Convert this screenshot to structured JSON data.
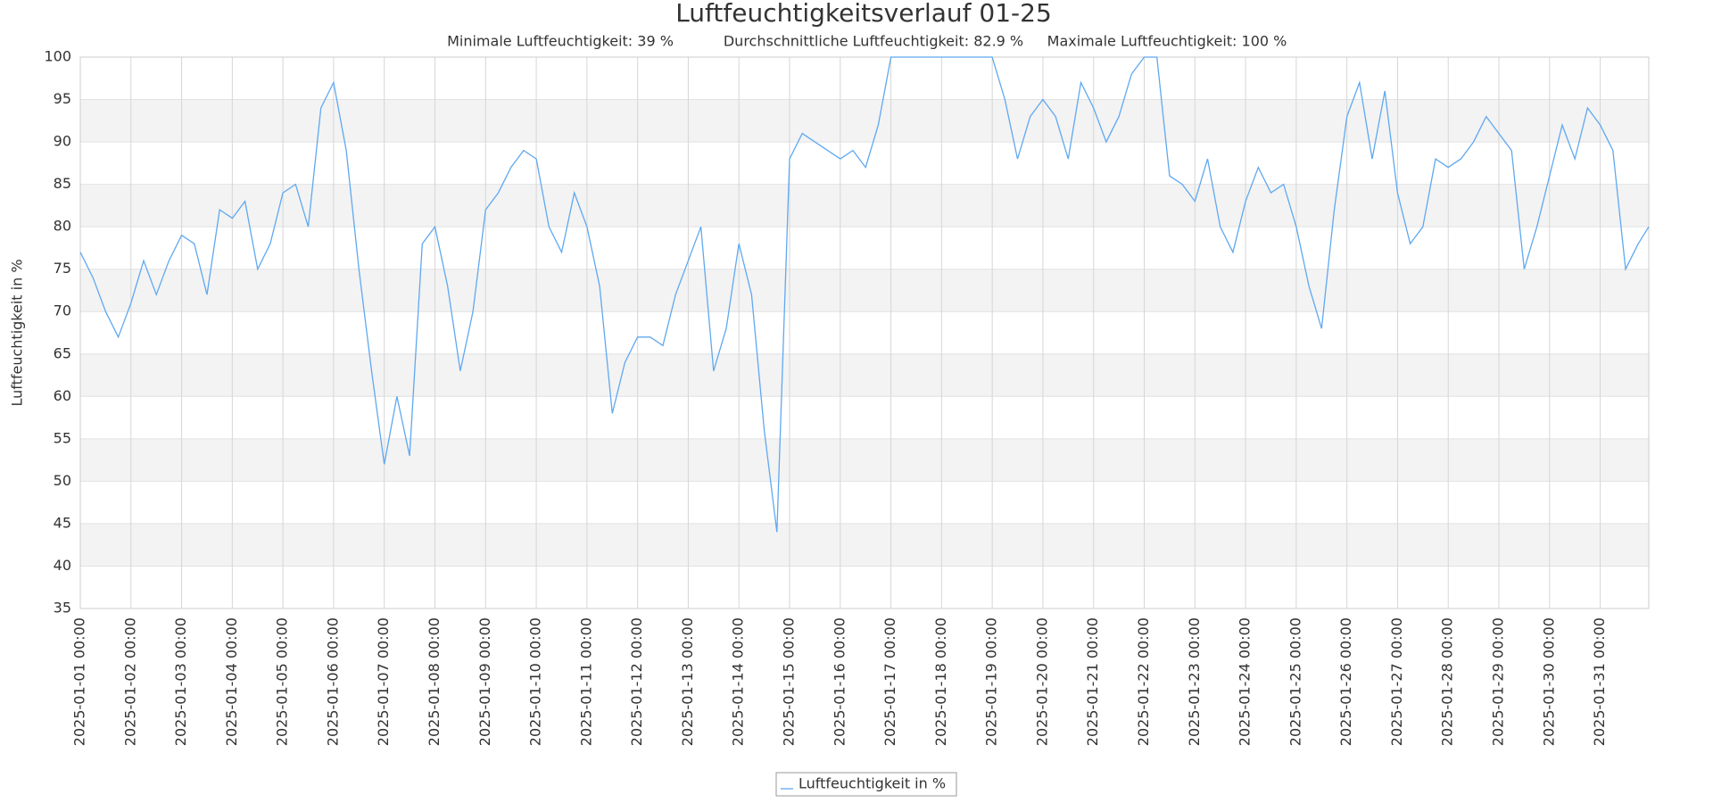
{
  "chart_data": {
    "type": "line",
    "title": "Luftfeuchtigkeitsverlauf 01-25",
    "stats": [
      "Minimale Luftfeuchtigkeit: 39 %",
      "Durchschnittliche Luftfeuchtigkeit: 82.9 %",
      "Maximale Luftfeuchtigkeit: 100 %"
    ],
    "y_label": "Luftfeuchtigkeit in %",
    "ylim": [
      35,
      100
    ],
    "yticks": [
      35,
      40,
      45,
      50,
      55,
      60,
      65,
      70,
      75,
      80,
      85,
      90,
      95,
      100
    ],
    "xlim": [
      "2025-01-01 00:00",
      "2025-01-31 23:00"
    ],
    "xticks": [
      "2025-01-01 00:00",
      "2025-01-02 00:00",
      "2025-01-03 00:00",
      "2025-01-04 00:00",
      "2025-01-05 00:00",
      "2025-01-06 00:00",
      "2025-01-07 00:00",
      "2025-01-08 00:00",
      "2025-01-09 00:00",
      "2025-01-10 00:00",
      "2025-01-11 00:00",
      "2025-01-12 00:00",
      "2025-01-13 00:00",
      "2025-01-14 00:00",
      "2025-01-15 00:00",
      "2025-01-16 00:00",
      "2025-01-17 00:00",
      "2025-01-18 00:00",
      "2025-01-19 00:00",
      "2025-01-20 00:00",
      "2025-01-21 00:00",
      "2025-01-22 00:00",
      "2025-01-23 00:00",
      "2025-01-24 00:00",
      "2025-01-25 00:00",
      "2025-01-26 00:00",
      "2025-01-27 00:00",
      "2025-01-28 00:00",
      "2025-01-29 00:00",
      "2025-01-30 00:00",
      "2025-01-31 00:00"
    ],
    "grid": true,
    "x": [
      "2025-01-01 00:00",
      "2025-01-01 06:00",
      "2025-01-01 12:00",
      "2025-01-01 18:00",
      "2025-01-02 00:00",
      "2025-01-02 06:00",
      "2025-01-02 12:00",
      "2025-01-02 18:00",
      "2025-01-03 00:00",
      "2025-01-03 06:00",
      "2025-01-03 12:00",
      "2025-01-03 18:00",
      "2025-01-04 00:00",
      "2025-01-04 06:00",
      "2025-01-04 12:00",
      "2025-01-04 18:00",
      "2025-01-05 00:00",
      "2025-01-05 06:00",
      "2025-01-05 12:00",
      "2025-01-05 18:00",
      "2025-01-06 00:00",
      "2025-01-06 06:00",
      "2025-01-06 12:00",
      "2025-01-06 18:00",
      "2025-01-07 00:00",
      "2025-01-07 06:00",
      "2025-01-07 12:00",
      "2025-01-07 18:00",
      "2025-01-08 00:00",
      "2025-01-08 06:00",
      "2025-01-08 12:00",
      "2025-01-08 18:00",
      "2025-01-09 00:00",
      "2025-01-09 06:00",
      "2025-01-09 12:00",
      "2025-01-09 18:00",
      "2025-01-10 00:00",
      "2025-01-10 06:00",
      "2025-01-10 12:00",
      "2025-01-10 18:00",
      "2025-01-11 00:00",
      "2025-01-11 06:00",
      "2025-01-11 12:00",
      "2025-01-11 18:00",
      "2025-01-12 00:00",
      "2025-01-12 06:00",
      "2025-01-12 12:00",
      "2025-01-12 18:00",
      "2025-01-13 00:00",
      "2025-01-13 06:00",
      "2025-01-13 12:00",
      "2025-01-13 18:00",
      "2025-01-14 00:00",
      "2025-01-14 06:00",
      "2025-01-14 12:00",
      "2025-01-14 18:00",
      "2025-01-15 00:00",
      "2025-01-15 06:00",
      "2025-01-15 12:00",
      "2025-01-15 18:00",
      "2025-01-16 00:00",
      "2025-01-16 06:00",
      "2025-01-16 12:00",
      "2025-01-16 18:00",
      "2025-01-17 00:00",
      "2025-01-17 06:00",
      "2025-01-17 12:00",
      "2025-01-17 18:00",
      "2025-01-18 00:00",
      "2025-01-18 06:00",
      "2025-01-18 12:00",
      "2025-01-18 18:00",
      "2025-01-19 00:00",
      "2025-01-19 06:00",
      "2025-01-19 12:00",
      "2025-01-19 18:00",
      "2025-01-20 00:00",
      "2025-01-20 06:00",
      "2025-01-20 12:00",
      "2025-01-20 18:00",
      "2025-01-21 00:00",
      "2025-01-21 06:00",
      "2025-01-21 12:00",
      "2025-01-21 18:00",
      "2025-01-22 00:00",
      "2025-01-22 06:00",
      "2025-01-22 12:00",
      "2025-01-22 18:00",
      "2025-01-23 00:00",
      "2025-01-23 06:00",
      "2025-01-23 12:00",
      "2025-01-23 18:00",
      "2025-01-24 00:00",
      "2025-01-24 06:00",
      "2025-01-24 12:00",
      "2025-01-24 18:00",
      "2025-01-25 00:00",
      "2025-01-25 06:00",
      "2025-01-25 12:00",
      "2025-01-25 18:00",
      "2025-01-26 00:00",
      "2025-01-26 06:00",
      "2025-01-26 12:00",
      "2025-01-26 18:00",
      "2025-01-27 00:00",
      "2025-01-27 06:00",
      "2025-01-27 12:00",
      "2025-01-27 18:00",
      "2025-01-28 00:00",
      "2025-01-28 06:00",
      "2025-01-28 12:00",
      "2025-01-28 18:00",
      "2025-01-29 00:00",
      "2025-01-29 06:00",
      "2025-01-29 12:00",
      "2025-01-29 18:00",
      "2025-01-30 00:00",
      "2025-01-30 06:00",
      "2025-01-30 12:00",
      "2025-01-30 18:00",
      "2025-01-31 00:00",
      "2025-01-31 06:00",
      "2025-01-31 12:00",
      "2025-01-31 18:00",
      "2025-01-31 23:00"
    ],
    "series": [
      {
        "name": "Luftfeuchtigkeit in %",
        "color": "#5fa8f0",
        "values": [
          77,
          74,
          70,
          67,
          71,
          76,
          72,
          76,
          79,
          78,
          72,
          82,
          81,
          83,
          75,
          78,
          84,
          85,
          80,
          94,
          97,
          89,
          75,
          63,
          52,
          60,
          53,
          78,
          80,
          73,
          63,
          70,
          82,
          84,
          87,
          89,
          88,
          80,
          77,
          84,
          80,
          73,
          58,
          64,
          67,
          67,
          66,
          72,
          76,
          80,
          63,
          68,
          78,
          72,
          56,
          44,
          88,
          91,
          90,
          89,
          88,
          89,
          87,
          92,
          100,
          100,
          100,
          100,
          100,
          100,
          100,
          100,
          100,
          95,
          88,
          93,
          95,
          93,
          88,
          97,
          94,
          90,
          93,
          98,
          100,
          100,
          86,
          85,
          83,
          88,
          80,
          77,
          83,
          87,
          84,
          85,
          80,
          73,
          68,
          82,
          93,
          97,
          88,
          96,
          84,
          78,
          80,
          88,
          87,
          88,
          90,
          93,
          91,
          89,
          75,
          80,
          86,
          92,
          88,
          94,
          92,
          89,
          75,
          78,
          80
        ]
      }
    ]
  }
}
